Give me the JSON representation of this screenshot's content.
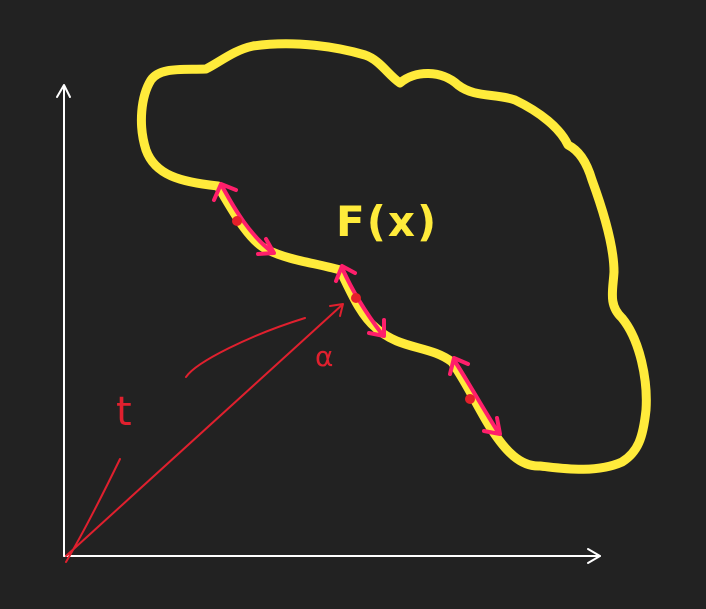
{
  "background_color": "#222222",
  "colors": {
    "axis": "#ffffff",
    "region_outline": "#ffeb3b",
    "annotation": "#e0202e",
    "arrow": "#ff1f6b",
    "dot": "#e5202a"
  },
  "labels": {
    "function": "F(x)",
    "t": "t",
    "alpha": "α"
  },
  "icons": {
    "x_axis_arrow": "arrow-right-icon",
    "y_axis_arrow": "arrow-up-icon",
    "double_arrow": "double-arrow-icon"
  }
}
